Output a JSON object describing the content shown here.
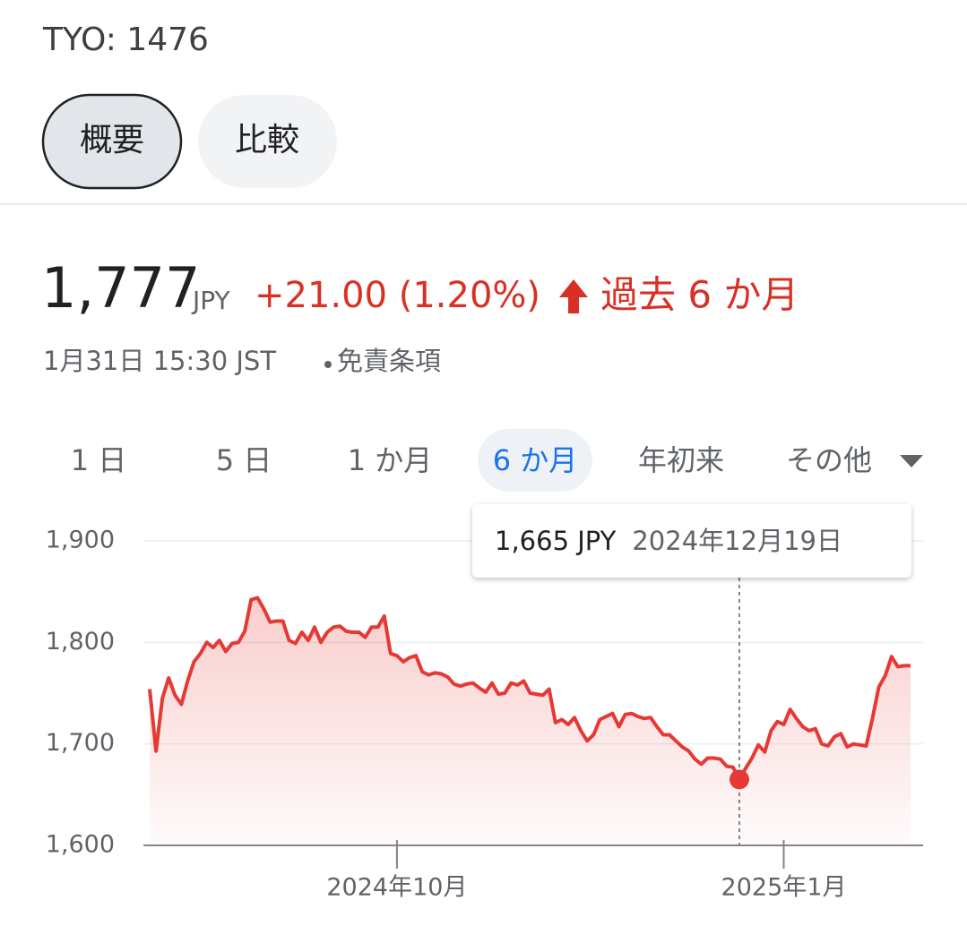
{
  "header": {
    "ticker": "TYO: 1476",
    "tabs": [
      "概要",
      "比較"
    ]
  },
  "quote": {
    "price": "1,777",
    "currency": "JPY",
    "change": "+21.00 (1.20%)",
    "period": "過去 6 か月",
    "timestamp": "1月31日 15:30 JST",
    "disclaimer": "免責条項"
  },
  "ranges": [
    "1 日",
    "5 日",
    "1 か月",
    "6 か月",
    "年初来",
    "その他"
  ],
  "chart_data": {
    "type": "line",
    "color": "#e53935",
    "values": [
      1754,
      1693,
      1745,
      1765,
      1748,
      1739,
      1762,
      1781,
      1789,
      1800,
      1795,
      1802,
      1791,
      1799,
      1800,
      1811,
      1842,
      1844,
      1833,
      1820,
      1821,
      1821,
      1802,
      1799,
      1810,
      1802,
      1815,
      1800,
      1810,
      1815,
      1816,
      1811,
      1810,
      1810,
      1805,
      1815,
      1815,
      1826,
      1789,
      1787,
      1781,
      1785,
      1787,
      1771,
      1768,
      1770,
      1769,
      1766,
      1759,
      1757,
      1759,
      1760,
      1755,
      1751,
      1760,
      1749,
      1750,
      1760,
      1758,
      1762,
      1750,
      1749,
      1748,
      1754,
      1721,
      1724,
      1719,
      1726,
      1713,
      1703,
      1709,
      1724,
      1727,
      1730,
      1717,
      1729,
      1730,
      1727,
      1725,
      1726,
      1717,
      1709,
      1709,
      1703,
      1697,
      1693,
      1685,
      1680,
      1686,
      1686,
      1685,
      1678,
      1677,
      1665,
      1676,
      1686,
      1699,
      1692,
      1713,
      1722,
      1719,
      1734,
      1725,
      1717,
      1713,
      1715,
      1700,
      1698,
      1707,
      1710,
      1697,
      1700,
      1699,
      1698,
      1725,
      1756,
      1767,
      1786,
      1776,
      1777,
      1777
    ],
    "xlim": [
      0,
      120
    ],
    "xticks": [
      {
        "value": 39,
        "label": "2024年10月"
      },
      {
        "value": 100,
        "label": "2025年1月"
      }
    ],
    "ylim": [
      1600,
      1900
    ],
    "yticks": [
      {
        "value": 1600,
        "label": "1,600"
      },
      {
        "value": 1700,
        "label": "1,700"
      },
      {
        "value": 1800,
        "label": "1,800"
      },
      {
        "value": 1900,
        "label": "1,900"
      }
    ],
    "grid": true,
    "tooltip": {
      "x": 93,
      "value": 1665,
      "value_label": "1,665 JPY",
      "date": "2024年12月19日"
    }
  }
}
